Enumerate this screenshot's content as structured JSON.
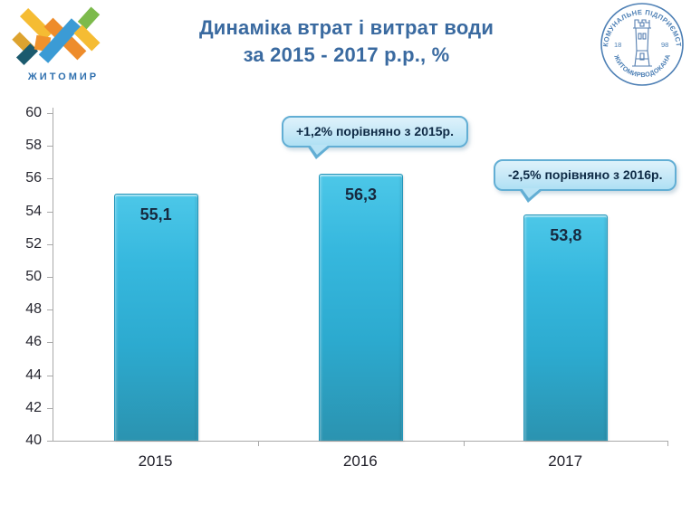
{
  "header": {
    "title_line1": "Динаміка втрат і витрат води",
    "title_line2": "за 2015 - 2017 р.р., %",
    "city_logo": {
      "name": "ЖИТОМИР"
    },
    "stamp": {
      "top_text": "КОМУНАЛЬНЕ ПІДПРИЄМСТВО",
      "bottom_text": "ЖИТОМИРВОДОКАНАЛ",
      "year_left": "18",
      "year_right": "98"
    }
  },
  "chart_data": {
    "type": "bar",
    "title": "Динаміка втрат і витрат води за 2015 - 2017 р.р., %",
    "categories": [
      "2015",
      "2016",
      "2017"
    ],
    "values": [
      55.1,
      56.3,
      53.8
    ],
    "value_labels": [
      "55,1",
      "56,3",
      "53,8"
    ],
    "ylim": [
      40,
      60
    ],
    "yticks": [
      60,
      58,
      56,
      54,
      52,
      50,
      48,
      46,
      44,
      42,
      40
    ],
    "grid": false,
    "legend": "none",
    "bar_color": "#2faccf",
    "annotations": [
      {
        "text": "+1,2% порівняно з 2015р.",
        "target": "2016"
      },
      {
        "text": "-2,5% порівняно з 2016р.",
        "target": "2017"
      }
    ]
  },
  "colors": {
    "title": "#3a6aa0",
    "bar_gradient_top": "#4cc7e8",
    "bar_gradient_bottom": "#2b93b0",
    "bar_border": "#2496ba",
    "value_label": "#17293f",
    "bubble_fill": "#c6e8f7",
    "bubble_border": "#62aed4",
    "axis_line": "#a9a9a9",
    "stamp_blue": "#4e80b5"
  }
}
